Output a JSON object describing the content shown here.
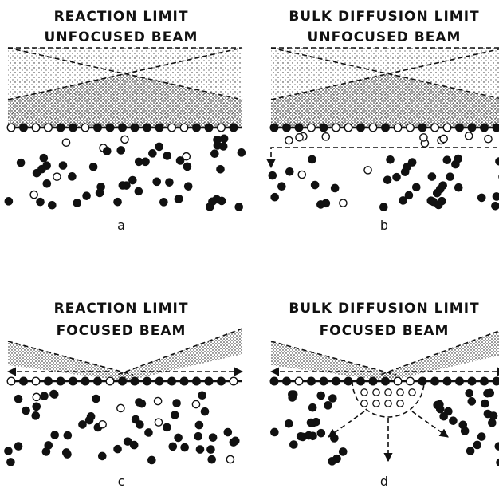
{
  "panels": [
    {
      "title": [
        "REACTION LIMIT",
        "UNFOCUSED BEAM"
      ],
      "label": "a"
    },
    {
      "title": [
        "BULK DIFFUSION LIMIT",
        "UNFOCUSED BEAM"
      ],
      "label": "b"
    },
    {
      "title": [
        "REACTION LIMIT",
        "FOCUSED BEAM"
      ],
      "label": "c"
    },
    {
      "title": [
        "BULK DIFFUSION LIMIT",
        "FOCUSED BEAM"
      ],
      "label": "d"
    }
  ]
}
